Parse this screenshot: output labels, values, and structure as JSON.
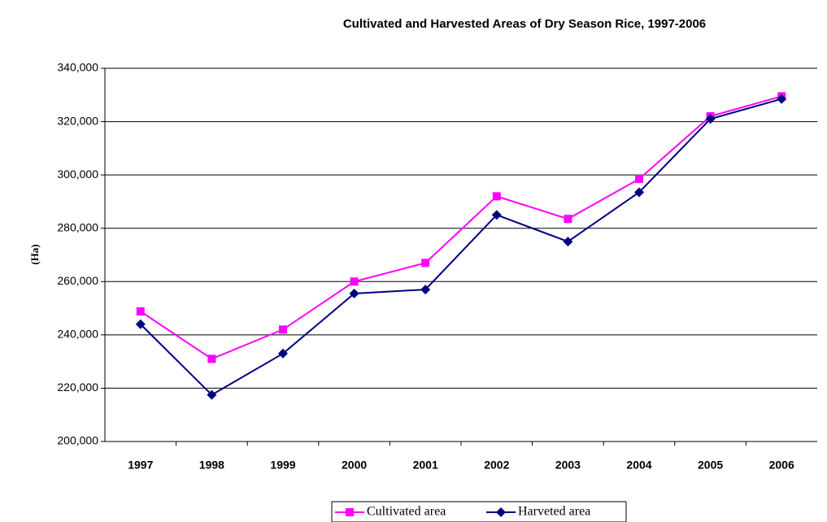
{
  "chart_data": {
    "type": "line",
    "title": "Cultivated and Harvested Areas of Dry Season Rice, 1997-2006",
    "y_label": "(Ha)",
    "categories": [
      "1997",
      "1998",
      "1999",
      "2000",
      "2001",
      "2002",
      "2003",
      "2004",
      "2005",
      "2006"
    ],
    "series": [
      {
        "name": "Cultivated area",
        "color": "#ff00ff",
        "marker": "square",
        "values": [
          248800,
          231000,
          242000,
          260000,
          267000,
          292000,
          283500,
          298500,
          322000,
          329500
        ]
      },
      {
        "name": "Harveted area",
        "color": "#000080",
        "marker": "diamond",
        "values": [
          244000,
          217500,
          233000,
          255500,
          257000,
          285000,
          275000,
          293500,
          321000,
          328500
        ]
      }
    ],
    "ylim": [
      200000,
      340000
    ],
    "yticks": [
      {
        "value": 200000,
        "label": "200,000"
      },
      {
        "value": 220000,
        "label": "220,000"
      },
      {
        "value": 240000,
        "label": "240,000"
      },
      {
        "value": 260000,
        "label": "260,000"
      },
      {
        "value": 280000,
        "label": "280,000"
      },
      {
        "value": 300000,
        "label": "300,000"
      },
      {
        "value": 320000,
        "label": "320,000"
      },
      {
        "value": 340000,
        "label": "340,000"
      }
    ],
    "grid": true,
    "legend": "bottom"
  }
}
